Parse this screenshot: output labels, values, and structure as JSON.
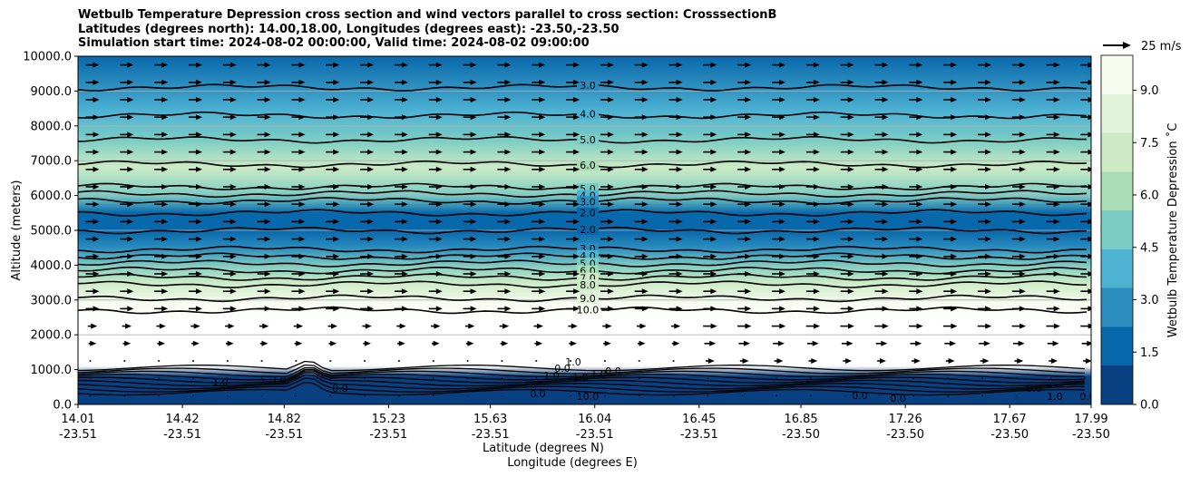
{
  "title_lines": [
    "Wetbulb Temperature Depression cross section and wind vectors parallel to cross section: CrosssectionB",
    "Latitudes (degrees north): 14.00,18.00, Longitudes (degrees east): -23.50,-23.50",
    "Simulation start time: 2024-08-02 00:00:00, Valid time: 2024-08-02 09:00:00"
  ],
  "chart_data": {
    "type": "heatmap",
    "title": "Wetbulb Temperature Depression cross section and wind vectors parallel to cross section: CrosssectionB",
    "ylabel": "Altitude (meters)",
    "xlabel_lat": "Latitude (degrees N)",
    "xlabel_lon": "Longitude (degrees E)",
    "ylim": [
      0,
      10000
    ],
    "yticks": [
      "0.0",
      "1000.0",
      "2000.0",
      "3000.0",
      "4000.0",
      "5000.0",
      "6000.0",
      "7000.0",
      "8000.0",
      "9000.0",
      "10000.0"
    ],
    "xticks_lat": [
      "14.01",
      "14.42",
      "14.82",
      "15.23",
      "15.63",
      "16.04",
      "16.45",
      "16.85",
      "17.26",
      "17.67",
      "17.99"
    ],
    "xticks_lon": [
      "-23.51",
      "-23.51",
      "-23.51",
      "-23.51",
      "-23.51",
      "-23.51",
      "-23.51",
      "-23.50",
      "-23.50",
      "-23.50",
      "-23.50"
    ],
    "grid": "horizontal",
    "colorbar": {
      "label": "Wetbulb Temperature Depression ˚C",
      "range": [
        0,
        10
      ],
      "ticks": [
        "0.0",
        "1.5",
        "3.0",
        "4.5",
        "6.0",
        "7.5",
        "9.0"
      ],
      "colors": [
        "#084081",
        "#0868ac",
        "#2b8cbe",
        "#4eb3d3",
        "#7bccc4",
        "#a8ddb5",
        "#ccebc5",
        "#e0f3db",
        "#f7fcf0"
      ]
    },
    "quiver_key": "25 m/s",
    "depression_profile": [
      {
        "altitude": 0,
        "value": 0.5
      },
      {
        "altitude": 800,
        "value": 0.8
      },
      {
        "altitude": 1100,
        "value": 10.5
      },
      {
        "altitude": 2400,
        "value": 10.5
      },
      {
        "altitude": 2900,
        "value": 9.5
      },
      {
        "altitude": 3500,
        "value": 7.5
      },
      {
        "altitude": 4000,
        "value": 5.5
      },
      {
        "altitude": 4500,
        "value": 3.0
      },
      {
        "altitude": 5000,
        "value": 1.2
      },
      {
        "altitude": 5500,
        "value": 1.5
      },
      {
        "altitude": 6000,
        "value": 5.0
      },
      {
        "altitude": 6800,
        "value": 7.0
      },
      {
        "altitude": 7600,
        "value": 5.5
      },
      {
        "altitude": 8400,
        "value": 3.8
      },
      {
        "altitude": 9200,
        "value": 2.8
      },
      {
        "altitude": 10000,
        "value": 1.8
      }
    ],
    "contour_lines": [
      {
        "label": "3.0",
        "altitude": 9100
      },
      {
        "label": "4.0",
        "altitude": 8300
      },
      {
        "label": "5.0",
        "altitude": 7600
      },
      {
        "label": "6.0",
        "altitude": 6900
      },
      {
        "label": "5.0",
        "altitude": 6250
      },
      {
        "label": "4.0",
        "altitude": 6050
      },
      {
        "label": "3.0",
        "altitude": 5850
      },
      {
        "label": "2.0",
        "altitude": 5500
      },
      {
        "label": "2.0",
        "altitude": 5000
      },
      {
        "label": "3.0",
        "altitude": 4450
      },
      {
        "label": "4.0",
        "altitude": 4250
      },
      {
        "label": "5.0",
        "altitude": 4050
      },
      {
        "label": "6.0",
        "altitude": 3850
      },
      {
        "label": "7.0",
        "altitude": 3650
      },
      {
        "label": "8.0",
        "altitude": 3450
      },
      {
        "label": "9.0",
        "altitude": 3050
      },
      {
        "label": "10.0",
        "altitude": 2700
      }
    ],
    "low_contour_labels": [
      "1.0",
      "3.0",
      "0.0",
      "0.0",
      "1.0",
      "10.0",
      "0.0",
      "0.0",
      "0.0",
      "1.0",
      "0.0",
      "1.0",
      "0.0",
      "1.0",
      "1.0",
      "0.0"
    ]
  }
}
